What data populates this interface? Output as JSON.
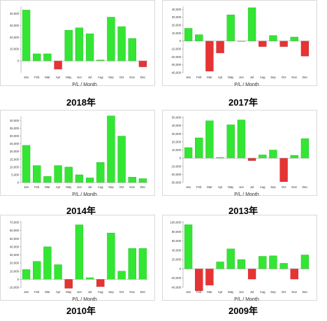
{
  "figure": {
    "bar_pos_color": "#33e633",
    "bar_neg_color": "#e63333",
    "pos_edge_color": "#23b623",
    "neg_edge_color": "#b82323",
    "frame_color": "#d9d9d9",
    "axis_color": "#999999",
    "grid_color": "#eeeeee"
  },
  "chart_data": [
    {
      "type": "bar",
      "title": "2018年",
      "xlabel": "P/L / Month",
      "ylabel": "",
      "grid": false,
      "categories": [
        "Jan",
        "Feb",
        "Mar",
        "Apr",
        "May",
        "Jun",
        "Jul",
        "Aug",
        "Sep",
        "Oct",
        "Nov",
        "Dec"
      ],
      "values": [
        43000,
        6000,
        6000,
        -7000,
        26000,
        28000,
        23000,
        800,
        37000,
        29000,
        19000,
        -5000
      ],
      "ylim": [
        -10000,
        45000
      ],
      "yticks": [
        0,
        10000,
        20000,
        30000,
        40000
      ],
      "ytick_labels": [
        "0",
        "10,000",
        "20,000",
        "30,000",
        "40,000"
      ]
    },
    {
      "type": "bar",
      "title": "2017年",
      "xlabel": "P/L / Month",
      "ylabel": "",
      "grid": false,
      "categories": [
        "Jan",
        "Feb",
        "Mar",
        "Apr",
        "May",
        "Jun",
        "Jul",
        "Aug",
        "Sep",
        "Oct",
        "Nov",
        "Dec"
      ],
      "values": [
        16000,
        8000,
        -38000,
        -15000,
        33000,
        0,
        42000,
        -7000,
        7000,
        -7000,
        5000,
        -19000
      ],
      "ylim": [
        -40000,
        42000
      ],
      "yticks": [
        -40000,
        -30000,
        -20000,
        -10000,
        0,
        10000,
        20000,
        30000,
        40000
      ],
      "ytick_labels": [
        "-40,000",
        "-30,000",
        "-20,000",
        "-10,000",
        "0",
        "10,000",
        "20,000",
        "30,000",
        "40,000"
      ]
    },
    {
      "type": "bar",
      "title": "2014年",
      "xlabel": "P/L / Month",
      "ylabel": "",
      "grid": false,
      "categories": [
        "Jan",
        "Feb",
        "Mar",
        "Apr",
        "May",
        "Jun",
        "Jul",
        "Aug",
        "Sep",
        "Oct",
        "Nov",
        "Dec"
      ],
      "values": [
        24000,
        11000,
        4000,
        11000,
        10000,
        5000,
        3000,
        13000,
        43000,
        30000,
        3500,
        2500
      ],
      "ylim": [
        0,
        42000
      ],
      "yticks": [
        0,
        5000,
        10000,
        15000,
        20000,
        25000,
        30000,
        35000,
        40000
      ],
      "ytick_labels": [
        "0",
        "5,000",
        "10,000",
        "15,000",
        "20,000",
        "25,000",
        "30,000",
        "35,000",
        "40,000"
      ]
    },
    {
      "type": "bar",
      "title": "2013年",
      "xlabel": "P/L / Month",
      "ylabel": "",
      "grid": false,
      "categories": [
        "Jan",
        "Feb",
        "Mar",
        "Apr",
        "May",
        "Jun",
        "Jul",
        "Aug",
        "Sep",
        "Oct",
        "Nov",
        "Dec"
      ],
      "values": [
        13000,
        25000,
        46000,
        800,
        41000,
        47000,
        -3000,
        4000,
        10000,
        -29000,
        3500,
        24000
      ],
      "ylim": [
        -30000,
        50000
      ],
      "yticks": [
        -30000,
        -20000,
        -10000,
        0,
        10000,
        20000,
        30000,
        40000,
        50000
      ],
      "ytick_labels": [
        "-30,000",
        "-20,000",
        "-10,000",
        "0",
        "10,000",
        "20,000",
        "30,000",
        "40,000",
        "50,000"
      ]
    },
    {
      "type": "bar",
      "title": "2010年",
      "xlabel": "P/L / Month",
      "ylabel": "",
      "grid": false,
      "categories": [
        "Jan",
        "Feb",
        "Mar",
        "Apr",
        "May",
        "Jun",
        "Jul",
        "Aug",
        "Sep",
        "Oct",
        "Nov",
        "Dec"
      ],
      "values": [
        12000,
        22000,
        40000,
        18000,
        -11000,
        67000,
        2000,
        -9000,
        57000,
        10000,
        38000,
        38000
      ],
      "ylim": [
        -10000,
        70000
      ],
      "yticks": [
        -10000,
        0,
        10000,
        20000,
        30000,
        40000,
        50000,
        60000,
        70000
      ],
      "ytick_labels": [
        "-10,000",
        "0",
        "10,000",
        "20,000",
        "30,000",
        "40,000",
        "50,000",
        "60,000",
        "70,000"
      ]
    },
    {
      "type": "bar",
      "title": "2009年",
      "xlabel": "P/L / Month",
      "ylabel": "",
      "grid": false,
      "categories": [
        "Jan",
        "Feb",
        "Mar",
        "Apr",
        "May",
        "Jun",
        "Jul",
        "Aug",
        "Sep",
        "Oct",
        "Nov",
        "Dec"
      ],
      "values": [
        95000,
        -47000,
        -35000,
        15000,
        43000,
        20000,
        -22000,
        27000,
        28000,
        12000,
        -22000,
        30000
      ],
      "ylim": [
        -40000,
        100000
      ],
      "yticks": [
        -40000,
        -20000,
        0,
        20000,
        40000,
        60000,
        80000,
        100000
      ],
      "ytick_labels": [
        "-40,000",
        "-20,000",
        "0",
        "20,000",
        "40,000",
        "60,000",
        "80,000",
        "100,000"
      ]
    }
  ]
}
